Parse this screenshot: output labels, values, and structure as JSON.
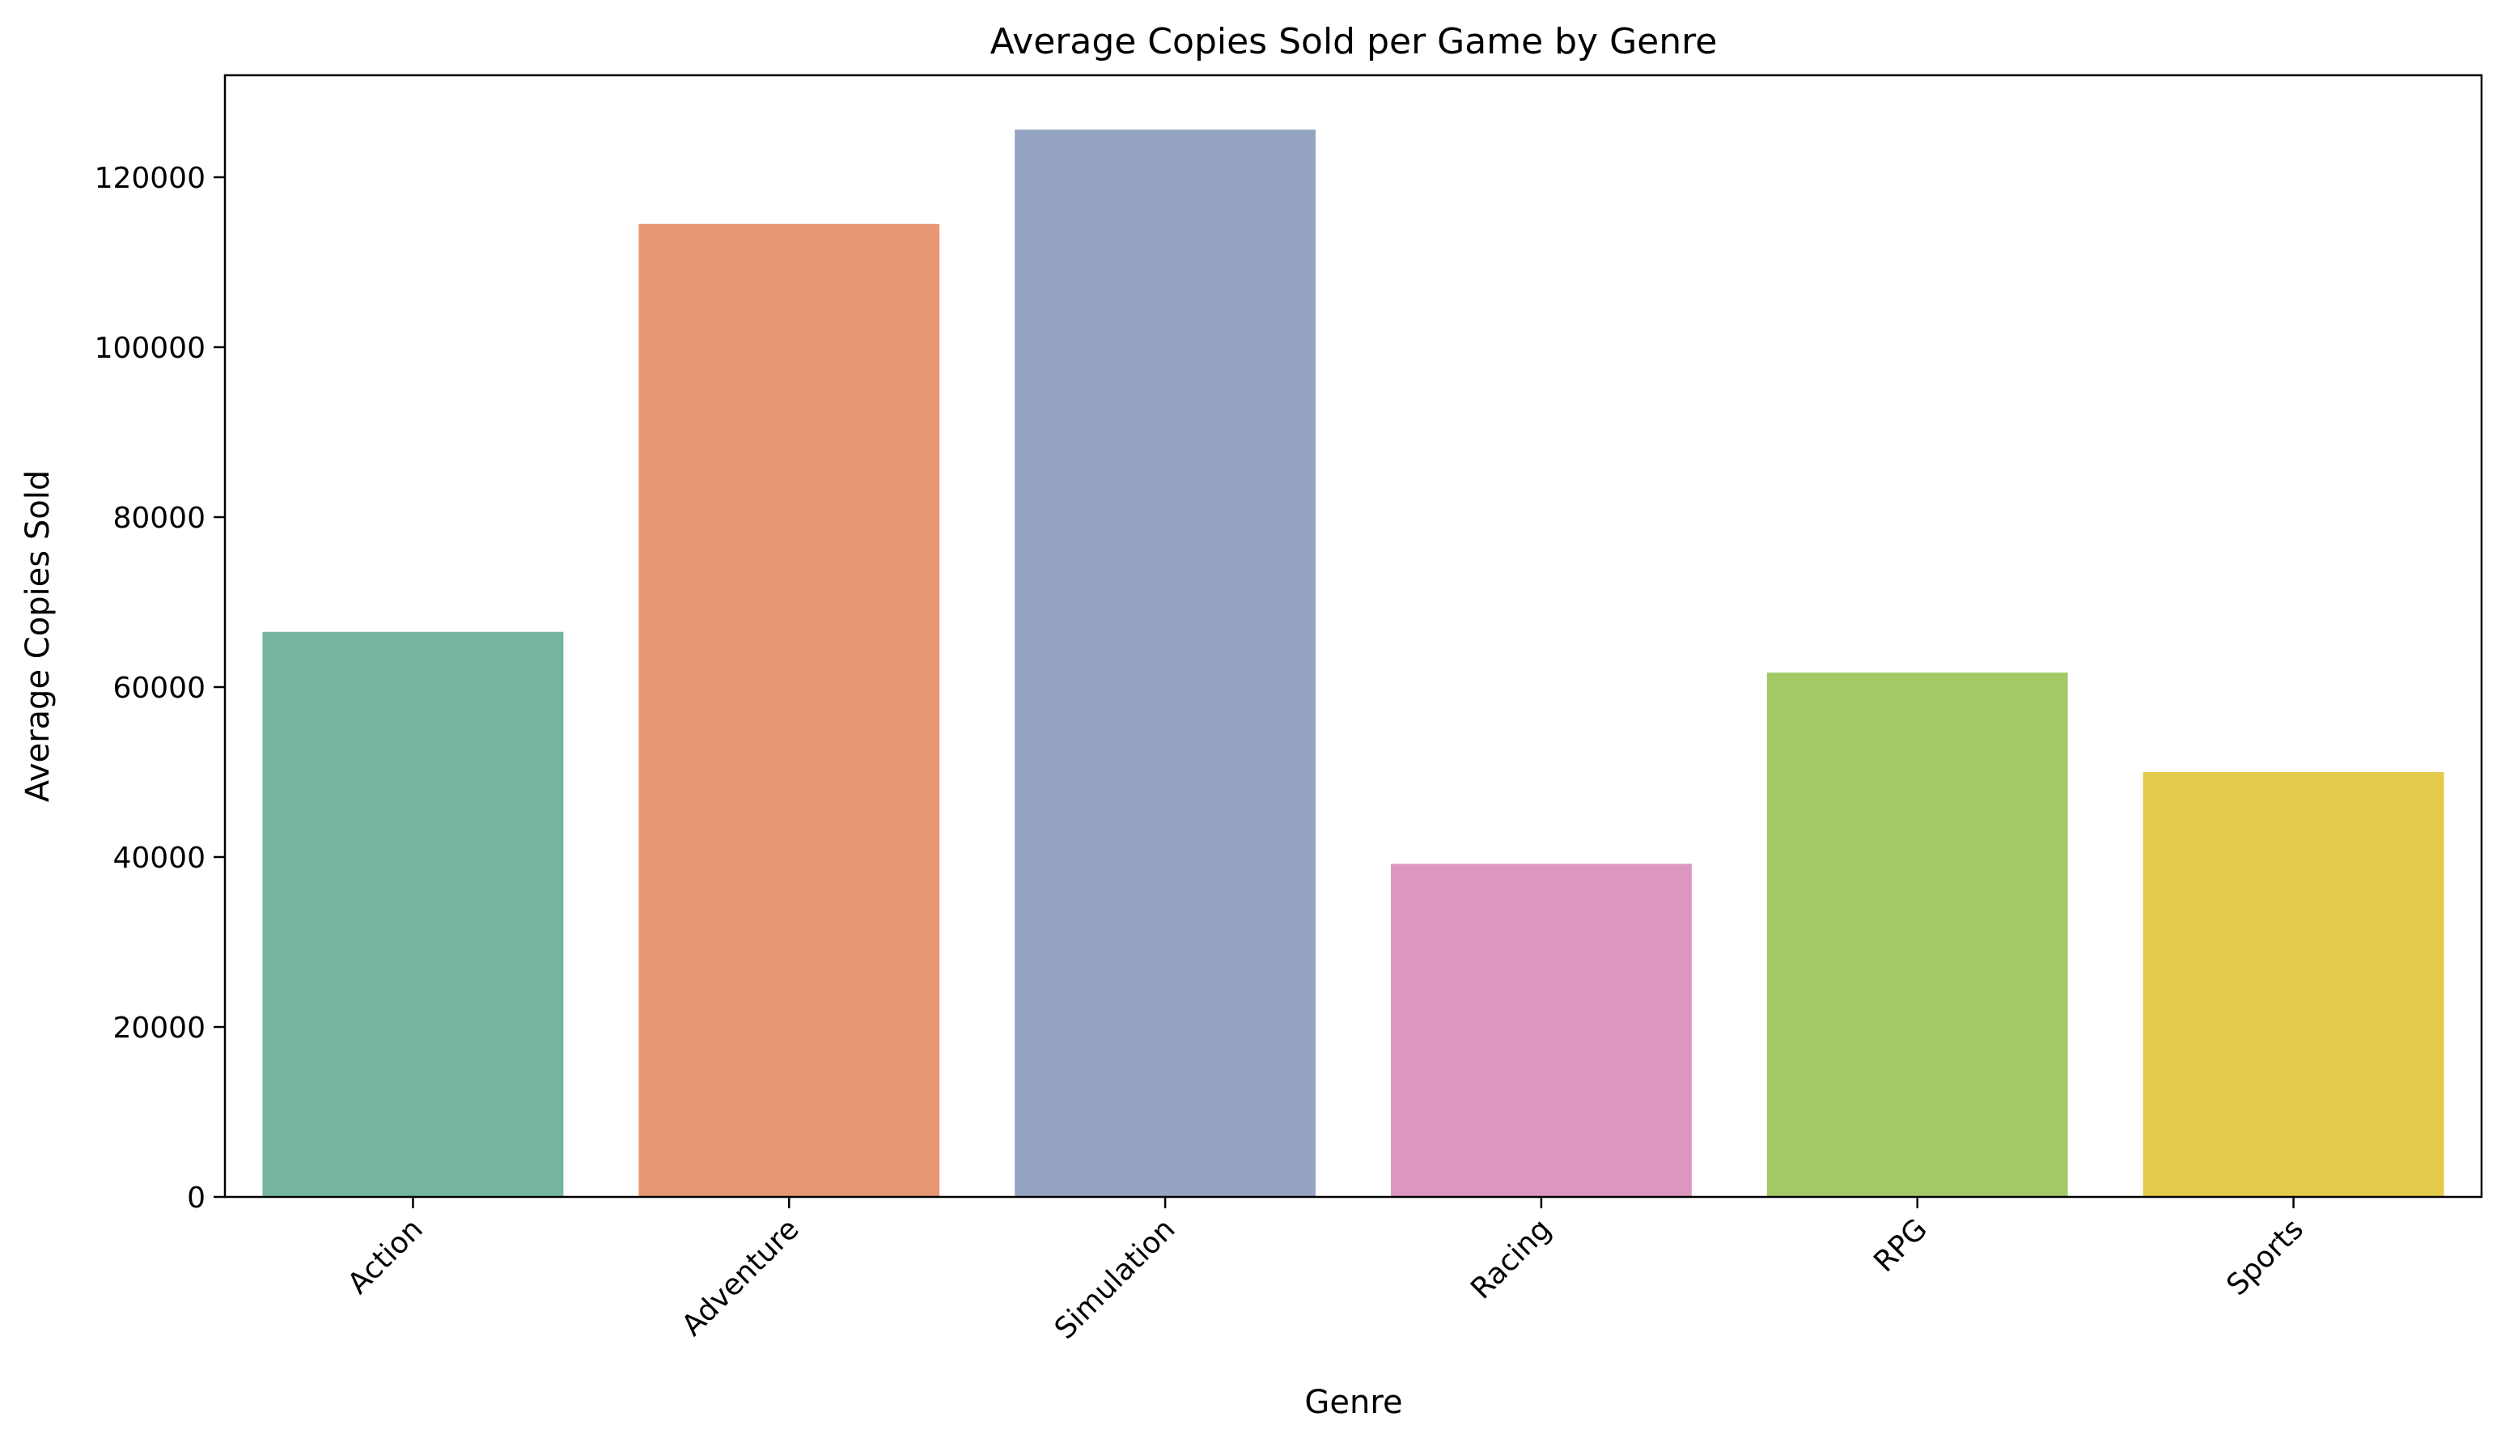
{
  "chart_data": {
    "type": "bar",
    "title": "Average Copies Sold per Game by Genre",
    "xlabel": "Genre",
    "ylabel": "Average Copies Sold",
    "categories": [
      "Action",
      "Adventure",
      "Simulation",
      "Racing",
      "RPG",
      "Sports"
    ],
    "values": [
      66500,
      114500,
      125600,
      39200,
      61700,
      50000
    ],
    "colors": [
      "#75b5a0",
      "#e89775",
      "#96a4c3",
      "#dc96c0",
      "#a3c967",
      "#e3ca4b"
    ],
    "ylim": [
      0,
      132000
    ],
    "yticks": [
      0,
      20000,
      40000,
      60000,
      80000,
      100000,
      120000
    ],
    "ytick_labels": [
      "0",
      "20000",
      "40000",
      "60000",
      "80000",
      "100000",
      "120000"
    ],
    "grid": false,
    "legend": false
  }
}
